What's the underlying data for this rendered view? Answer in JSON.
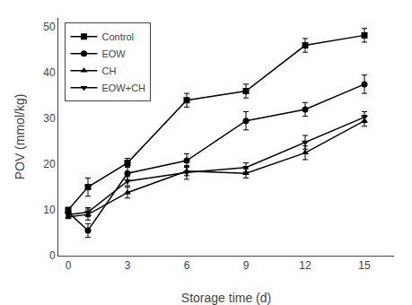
{
  "chart_data": {
    "type": "line",
    "x": [
      0,
      1,
      3,
      6,
      9,
      12,
      15
    ],
    "series": [
      {
        "name": "Control",
        "color": "#000000",
        "marker": "square",
        "values": [
          10.0,
          15.0,
          20.3,
          34.0,
          36.0,
          46.0,
          48.2
        ],
        "errors": [
          0.5,
          2.0,
          1.0,
          1.5,
          1.5,
          1.5,
          1.5
        ]
      },
      {
        "name": "EOW",
        "color": "#000000",
        "marker": "circle",
        "values": [
          9.5,
          5.5,
          18.0,
          20.8,
          29.5,
          32.0,
          37.5
        ],
        "errors": [
          0.5,
          1.5,
          1.5,
          1.5,
          2.0,
          1.5,
          2.0
        ]
      },
      {
        "name": "CH",
        "color": "#000000",
        "marker": "triangle-up",
        "values": [
          8.5,
          9.0,
          13.8,
          18.5,
          18.0,
          22.5,
          29.5
        ],
        "errors": [
          0.4,
          1.2,
          1.2,
          1.0,
          1.0,
          1.5,
          1.2
        ]
      },
      {
        "name": "EOW+CH",
        "color": "#000000",
        "marker": "triangle-down",
        "values": [
          9.0,
          9.5,
          16.3,
          18.2,
          19.3,
          24.8,
          30.3
        ],
        "errors": [
          0.4,
          1.0,
          1.0,
          1.5,
          1.0,
          1.5,
          1.2
        ]
      }
    ],
    "xlabel": "Storage time (d)",
    "ylabel": "POV (mmol/kg)",
    "xlim": [
      -0.5,
      16.5
    ],
    "xticks": [
      0,
      3,
      6,
      9,
      12,
      15
    ],
    "ylim": [
      0,
      52
    ],
    "yticks": [
      0,
      10,
      20,
      30,
      40,
      50
    ],
    "grid": false,
    "legend": "upper left"
  }
}
